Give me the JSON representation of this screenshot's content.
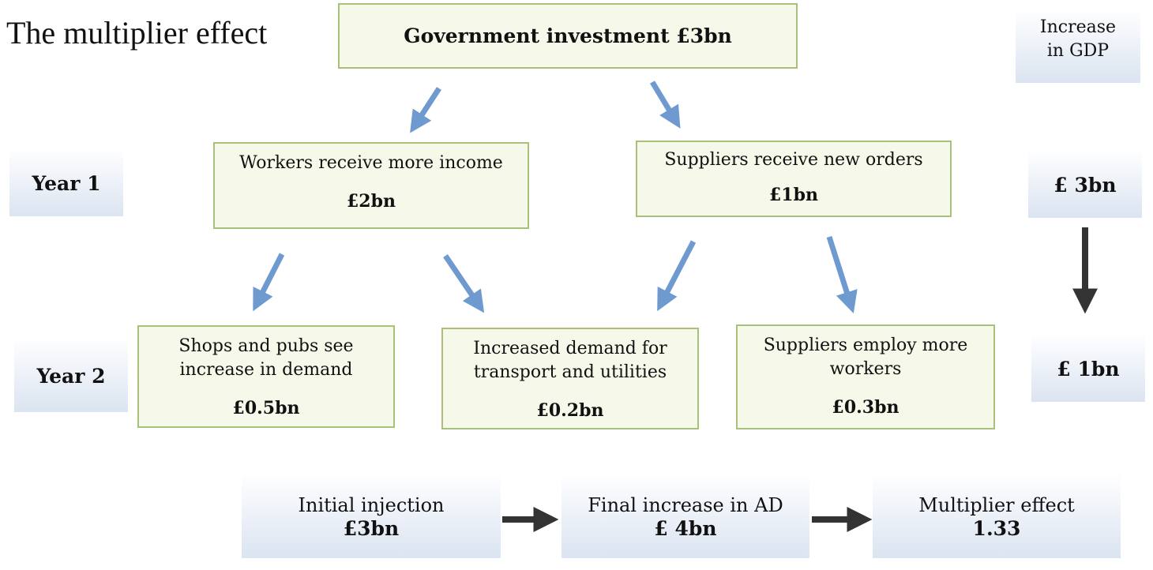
{
  "title": "The multiplier effect",
  "top_box": "Government investment £3bn",
  "gdp_header": [
    "Increase",
    "in GDP"
  ],
  "year1_label": "Year 1",
  "year2_label": "Year 2",
  "year1": [
    {
      "text": "Workers receive more income",
      "amount": "£2bn"
    },
    {
      "text": "Suppliers receive new orders",
      "amount": "£1bn"
    }
  ],
  "year2": [
    {
      "line1": "Shops and pubs see",
      "line2": "increase in demand",
      "amount": "£0.5bn"
    },
    {
      "line1": "Increased demand for",
      "line2": "transport and utilities",
      "amount": "£0.2bn"
    },
    {
      "line1": "Suppliers employ more",
      "line2": "workers",
      "amount": "£0.3bn"
    }
  ],
  "gdp_year1": "£ 3bn",
  "gdp_year2": "£ 1bn",
  "summary": [
    {
      "label": "Initial injection",
      "value": "£3bn"
    },
    {
      "label": "Final increase in AD",
      "value": "£ 4bn"
    },
    {
      "label": "Multiplier effect",
      "value": "1.33"
    }
  ],
  "colors": {
    "arrow_blue": "#6f9ad0",
    "arrow_dark": "#333333",
    "box_border": "#a9c07a"
  }
}
